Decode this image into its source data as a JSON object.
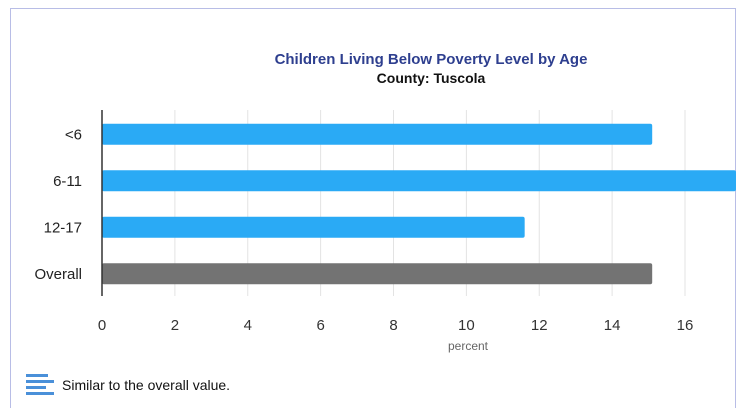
{
  "chart_data": {
    "type": "bar",
    "orientation": "horizontal",
    "title": "Children Living Below Poverty Level by Age",
    "subtitle": "County: Tuscola",
    "categories": [
      "<6",
      "6-11",
      "12-17",
      "Overall"
    ],
    "values": [
      15.1,
      17.6,
      11.6,
      15.1
    ],
    "bar_colors": [
      "#2aaaf5",
      "#2aaaf5",
      "#2aaaf5",
      "#737373"
    ],
    "xlabel": "percent",
    "ylabel": "",
    "xlim": [
      0,
      17.4
    ],
    "xticks": [
      0,
      2,
      4,
      6,
      8,
      10,
      12,
      14,
      16
    ],
    "grid": true
  },
  "legend": {
    "icon": "similar-bars-icon",
    "icon_color": "#4a90d9",
    "text": "Similar to the overall value."
  }
}
